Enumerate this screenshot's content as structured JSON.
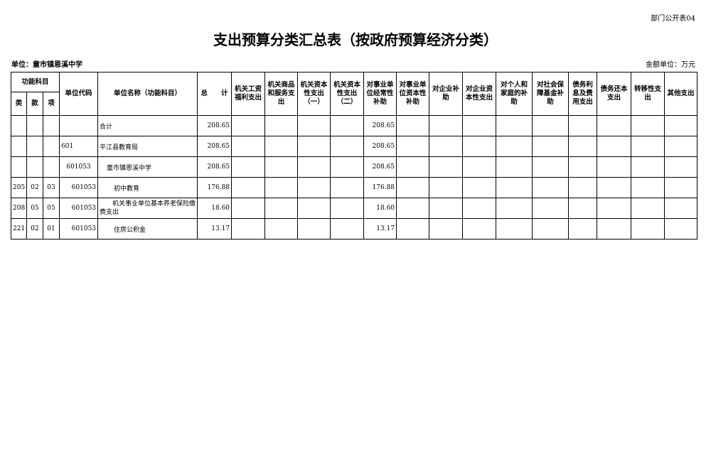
{
  "header": {
    "tag": "部门公开表04",
    "title": "支出预算分类汇总表（按政府预算经济分类）",
    "unit": "单位：童市镇恩溪中学",
    "amount_unit": "金额单位：万元"
  },
  "columns": {
    "func": "功能科目",
    "lei": "类",
    "kuan": "款",
    "xiang": "项",
    "code": "单位代码",
    "name": "单位名称（功能科目）",
    "total": "总　　计",
    "econ": [
      "机关工资福利支出",
      "机关商品和服务支出",
      "机关资本性支出（一）",
      "机关资本性支出（二）",
      "对事业单位经常性补助",
      "对事业单位资本性补助",
      "对企业补助",
      "对企业资本性支出",
      "对个人和家庭的补助",
      "对社会保障基金补助",
      "债务利息及费用支出",
      "债务还本支出",
      "转移性支出",
      "其他支出"
    ]
  },
  "rows": [
    {
      "lei": "",
      "kuan": "",
      "xiang": "",
      "code": "",
      "name": "合计",
      "total": "208.65",
      "shiye": "208.65",
      "indent": 0,
      "codealign": "c"
    },
    {
      "lei": "",
      "kuan": "",
      "xiang": "",
      "code": "601",
      "name": "平江县教育局",
      "total": "208.65",
      "shiye": "208.65",
      "indent": 0,
      "codealign": "l"
    },
    {
      "lei": "",
      "kuan": "",
      "xiang": "",
      "code": "601053",
      "name": "童市镇恩溪中学",
      "total": "208.65",
      "shiye": "208.65",
      "indent": 1,
      "codealign": "c"
    },
    {
      "lei": "205",
      "kuan": "02",
      "xiang": "03",
      "code": "601053",
      "name": "初中教育",
      "total": "176.88",
      "shiye": "176.88",
      "indent": 2,
      "codealign": "r"
    },
    {
      "lei": "208",
      "kuan": "05",
      "xiang": "05",
      "code": "601053",
      "name": "机关事业单位基本养老保险缴费支出",
      "total": "18.60",
      "shiye": "18.60",
      "indent": 2,
      "codealign": "r"
    },
    {
      "lei": "221",
      "kuan": "02",
      "xiang": "01",
      "code": "601053",
      "name": "住房公积金",
      "total": "13.17",
      "shiye": "13.17",
      "indent": 2,
      "codealign": "r"
    }
  ]
}
